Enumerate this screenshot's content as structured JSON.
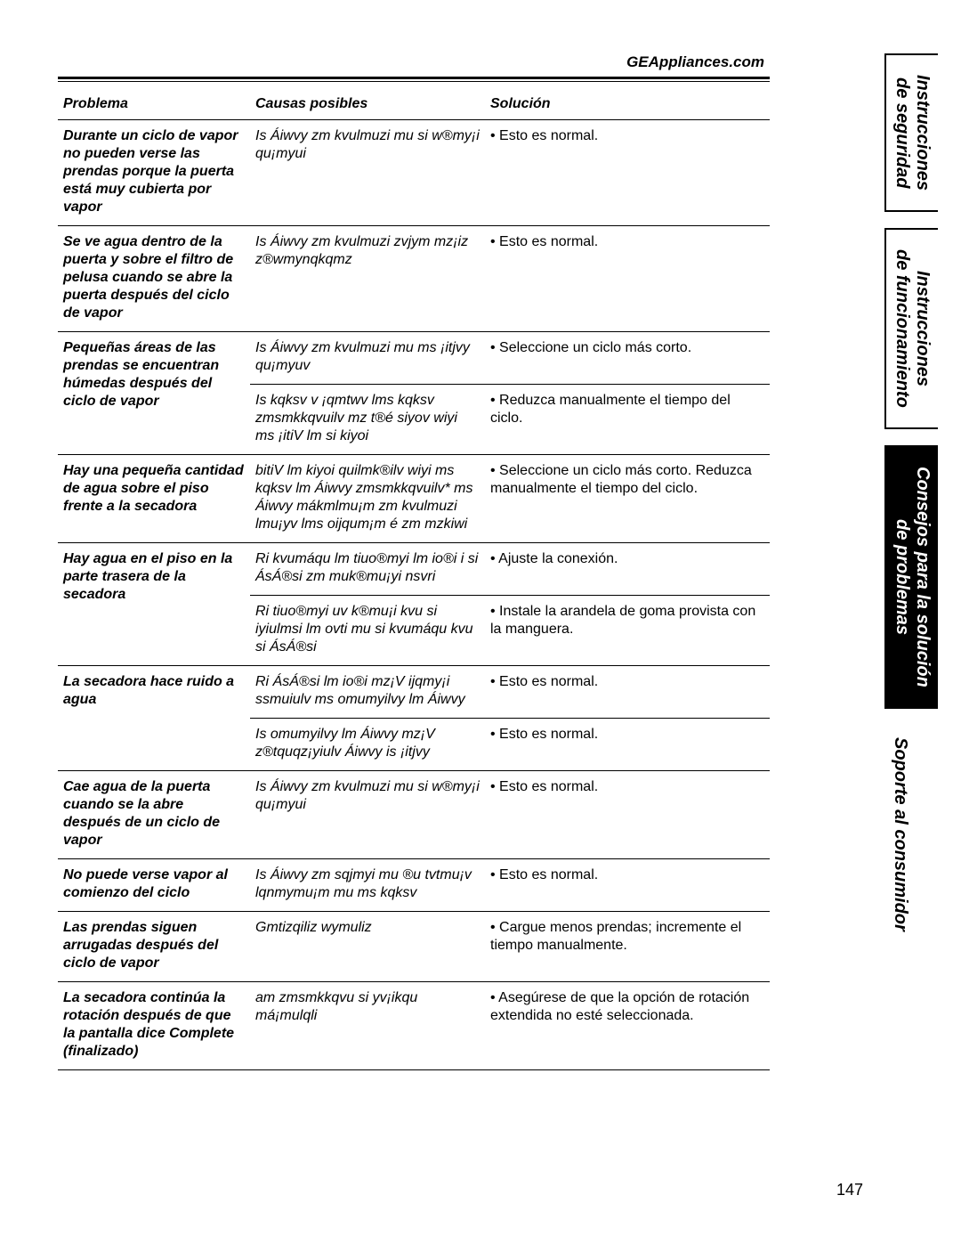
{
  "site": "GEAppliances.com",
  "pageNumber": "147",
  "headers": {
    "problem": "Problema",
    "causes": "Causas posibles",
    "solution": "Solución"
  },
  "tabs": [
    {
      "label": "Instrucciones\nde seguridad",
      "style": "light"
    },
    {
      "label": "Instrucciones\nde funcionamiento",
      "style": "light"
    },
    {
      "label": "Consejos para la solución\nde problemas",
      "style": "dark"
    },
    {
      "label": "Soporte al consumidor",
      "style": "plain"
    }
  ],
  "rows": [
    {
      "problem": "Durante un ciclo de vapor no pueden verse las prendas porque la puerta está muy cubierta por vapor",
      "cause": "Is Áiwvy zm kvulmuzi mu si w®my¡i qu¡myui",
      "solution": "• Esto es normal."
    },
    {
      "problem": "Se ve agua dentro de la puerta y sobre el filtro de pelusa cuando se abre la puerta después del ciclo de vapor",
      "cause": "Is Áiwvy zm kvulmuzi zvjym mz¡iz z®wmynqkqmz",
      "solution": "• Esto es normal."
    },
    {
      "problem": "Pequeñas áreas de las prendas se encuentran húmedas después del ciclo de vapor",
      "cause": "Is Áiwvy zm kvulmuzi mu ms ¡itjvy qu¡myuv",
      "solution": "• Seleccione un ciclo más corto.",
      "span": "first"
    },
    {
      "problem": "",
      "cause": "Is kqksv v ¡qmtwv lms kqksv zmsmkkqvuilv mz t®é siyov wiyi ms ¡itiV lm si kiyoi",
      "solution": "• Reduzca manualmente el tiempo del ciclo.",
      "span": "cont"
    },
    {
      "problem": "Hay una pequeña cantidad de agua sobre el piso frente a la secadora",
      "cause": "bitiV lm kiyoi quilmk®ilv wiyi ms kqksv lm Áiwvy zmsmkkqvuilv* ms Áiwvy mákmlmu¡m zm kvulmuzi lmu¡yv lms oijqum¡m é zm mzkiwi",
      "solution": "• Seleccione un ciclo más corto. Reduzca manualmente el tiempo del ciclo."
    },
    {
      "problem": "Hay agua en el piso en la parte trasera de la secadora",
      "cause": "Ri kvumáqu lm tiuo®myi lm io®i i si ÁsÁ®si zm muk®mu¡yi nsvri",
      "solution": "• Ajuste la conexión.",
      "span": "first"
    },
    {
      "problem": "",
      "cause": "Ri tiuo®myi uv k®mu¡i kvu si iyiulmsi lm ovti mu si kvumáqu kvu si ÁsÁ®si",
      "solution": "• Instale la arandela de goma provista con la manguera.",
      "span": "cont"
    },
    {
      "problem": "La secadora hace ruido a agua",
      "cause": "Ri ÁsÁ®si lm io®i mz¡V ijqmy¡i ssmuiulv ms omumyilvy lm Áiwvy",
      "solution": "• Esto es normal.",
      "span": "first"
    },
    {
      "problem": "",
      "cause": "Is omumyilvy lm Áiwvy mz¡V z®tquqz¡yiulv Áiwvy is ¡itjvy",
      "solution": "• Esto es normal.",
      "span": "cont"
    },
    {
      "problem": "Cae agua de la puerta cuando se la abre después de un ciclo de vapor",
      "cause": "Is Áiwvy zm kvulmuzi mu si w®my¡i qu¡myui",
      "solution": "• Esto es normal."
    },
    {
      "problem": "No puede verse vapor al comienzo del ciclo",
      "cause": "Is Áiwvy zm sqjmyi mu ®u tvtmu¡v lqnmymu¡m mu ms kqksv",
      "solution": "• Esto es normal."
    },
    {
      "problem": "Las prendas siguen arrugadas después del ciclo de vapor",
      "cause": "Gmtizqiliz wymuliz",
      "solution": "• Cargue menos prendas; incremente el tiempo manualmente."
    },
    {
      "problem": "La secadora continúa la rotación después de que la pantalla dice Complete (finalizado)",
      "cause": "am zmsmkkqvu si yv¡ikqu má¡mulqli",
      "solution": "• Asegúrese de que la opción de rotación extendida no esté seleccionada."
    }
  ]
}
